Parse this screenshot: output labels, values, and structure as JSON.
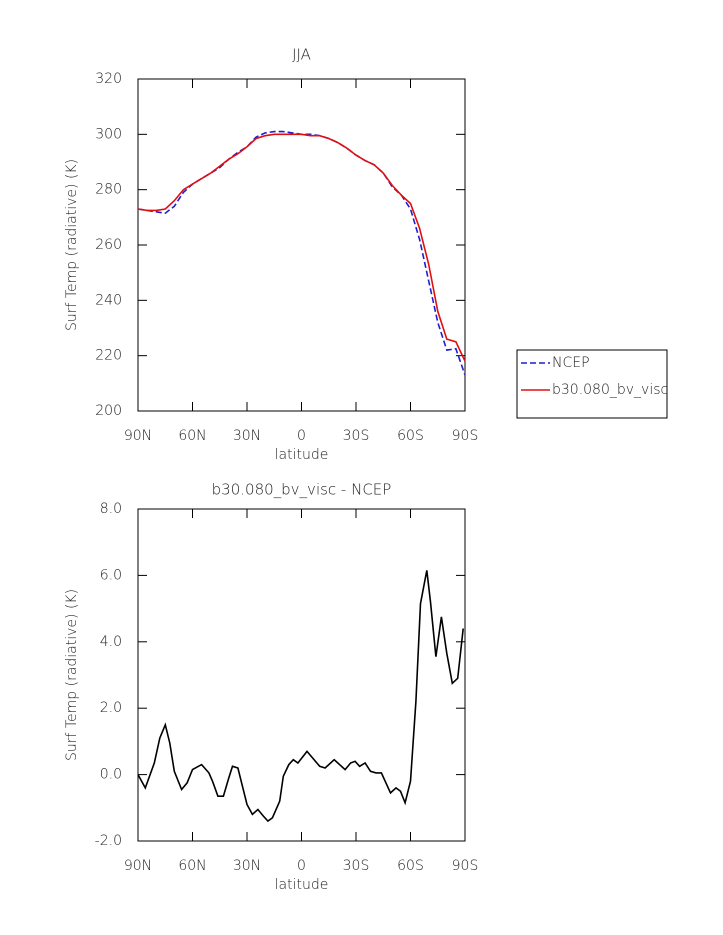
{
  "chart_data": [
    {
      "type": "line",
      "title": "JJA",
      "ylabel": "Surf Temp (radiative) (K)",
      "xlabel": "latitude",
      "x": [
        90,
        85,
        80,
        75,
        70,
        65,
        60,
        55,
        50,
        45,
        40,
        35,
        30,
        25,
        20,
        15,
        10,
        5,
        0,
        -5,
        -10,
        -15,
        -20,
        -25,
        -30,
        -35,
        -40,
        -45,
        -50,
        -55,
        -60,
        -65,
        -70,
        -75,
        -80,
        -85,
        -90
      ],
      "series": [
        {
          "name": "NCEP",
          "color": "#1f1fd0",
          "linestyle": "dashed",
          "values": [
            273,
            272.5,
            272,
            271.5,
            274,
            279,
            282,
            284,
            286,
            288,
            291,
            293.5,
            295.5,
            299,
            300.5,
            301,
            301,
            300.5,
            300,
            300,
            299.5,
            298.5,
            297,
            295,
            292.5,
            290.5,
            289,
            286,
            281,
            278,
            273,
            262,
            247,
            232,
            222,
            222.5,
            213
          ]
        },
        {
          "name": "b30.080_bv_visc",
          "color": "#e01010",
          "linestyle": "solid",
          "values": [
            273,
            272.5,
            272.5,
            273,
            276,
            280,
            282,
            284,
            286,
            288.5,
            291,
            293,
            295.5,
            298.5,
            299.5,
            300,
            300,
            300,
            300,
            299.5,
            299.5,
            298.5,
            297,
            295,
            292.5,
            290.5,
            289,
            286,
            281.5,
            278,
            275,
            266,
            253,
            236,
            226,
            225,
            218
          ]
        }
      ],
      "xlim": [
        90,
        -90
      ],
      "xticks": [
        {
          "value": 90,
          "label": "90N"
        },
        {
          "value": 60,
          "label": "60N"
        },
        {
          "value": 30,
          "label": "30N"
        },
        0,
        {
          "value": -30,
          "label": "30S"
        },
        {
          "value": -60,
          "label": "60S"
        },
        {
          "value": -90,
          "label": "90S"
        }
      ],
      "ylim": [
        200,
        320
      ],
      "yticks": [
        200,
        220,
        240,
        260,
        280,
        300,
        320
      ],
      "legend": "right"
    },
    {
      "type": "line",
      "title": "b30.080_bv_visc - NCEP",
      "ylabel": "Surf Temp (radiative) (K)",
      "xlabel": "latitude",
      "x": [
        90,
        86,
        81,
        78,
        75,
        72.5,
        70,
        66,
        63,
        60,
        55,
        51,
        49,
        46,
        43,
        40,
        38,
        35,
        30,
        27,
        24,
        21,
        18.5,
        16,
        12,
        10,
        7,
        4.5,
        2,
        -3,
        -10,
        -13,
        -18,
        -24,
        -27,
        -29.5,
        -32,
        -35,
        -38,
        -41,
        -44,
        -49,
        -52,
        -54.5,
        -57,
        -60,
        -63,
        -65.5,
        -69,
        -71,
        -74,
        -77,
        -80,
        -83,
        -86,
        -89
      ],
      "series": [
        {
          "color": "#000000",
          "linestyle": "solid",
          "values": [
            0,
            -0.4,
            0.35,
            1.1,
            1.5,
            0.95,
            0.1,
            -0.45,
            -0.25,
            0.15,
            0.3,
            0.05,
            -0.2,
            -0.65,
            -0.65,
            -0.1,
            0.25,
            0.2,
            -0.9,
            -1.2,
            -1.05,
            -1.25,
            -1.4,
            -1.3,
            -0.8,
            -0.05,
            0.3,
            0.45,
            0.35,
            0.7,
            0.25,
            0.2,
            0.45,
            0.15,
            0.35,
            0.4,
            0.25,
            0.35,
            0.1,
            0.05,
            0.05,
            -0.55,
            -0.4,
            -0.5,
            -0.85,
            -0.2,
            2.2,
            5.15,
            6.15,
            5.2,
            3.55,
            4.75,
            3.65,
            2.75,
            2.9,
            4.4
          ]
        }
      ],
      "xlim": [
        90,
        -90
      ],
      "xticks": [
        {
          "value": 90,
          "label": "90N"
        },
        {
          "value": 60,
          "label": "60N"
        },
        {
          "value": 30,
          "label": "30N"
        },
        0,
        {
          "value": -30,
          "label": "30S"
        },
        {
          "value": -60,
          "label": "60S"
        },
        {
          "value": -90,
          "label": "90S"
        }
      ],
      "ylim": [
        -2,
        8
      ],
      "yticks": [
        {
          "value": -2,
          "label": "-2.0"
        },
        {
          "value": 0,
          "label": "0.0"
        },
        {
          "value": 2,
          "label": "2.0"
        },
        {
          "value": 4,
          "label": "4.0"
        },
        {
          "value": 6,
          "label": "6.0"
        },
        {
          "value": 8,
          "label": "8.0"
        }
      ]
    }
  ]
}
